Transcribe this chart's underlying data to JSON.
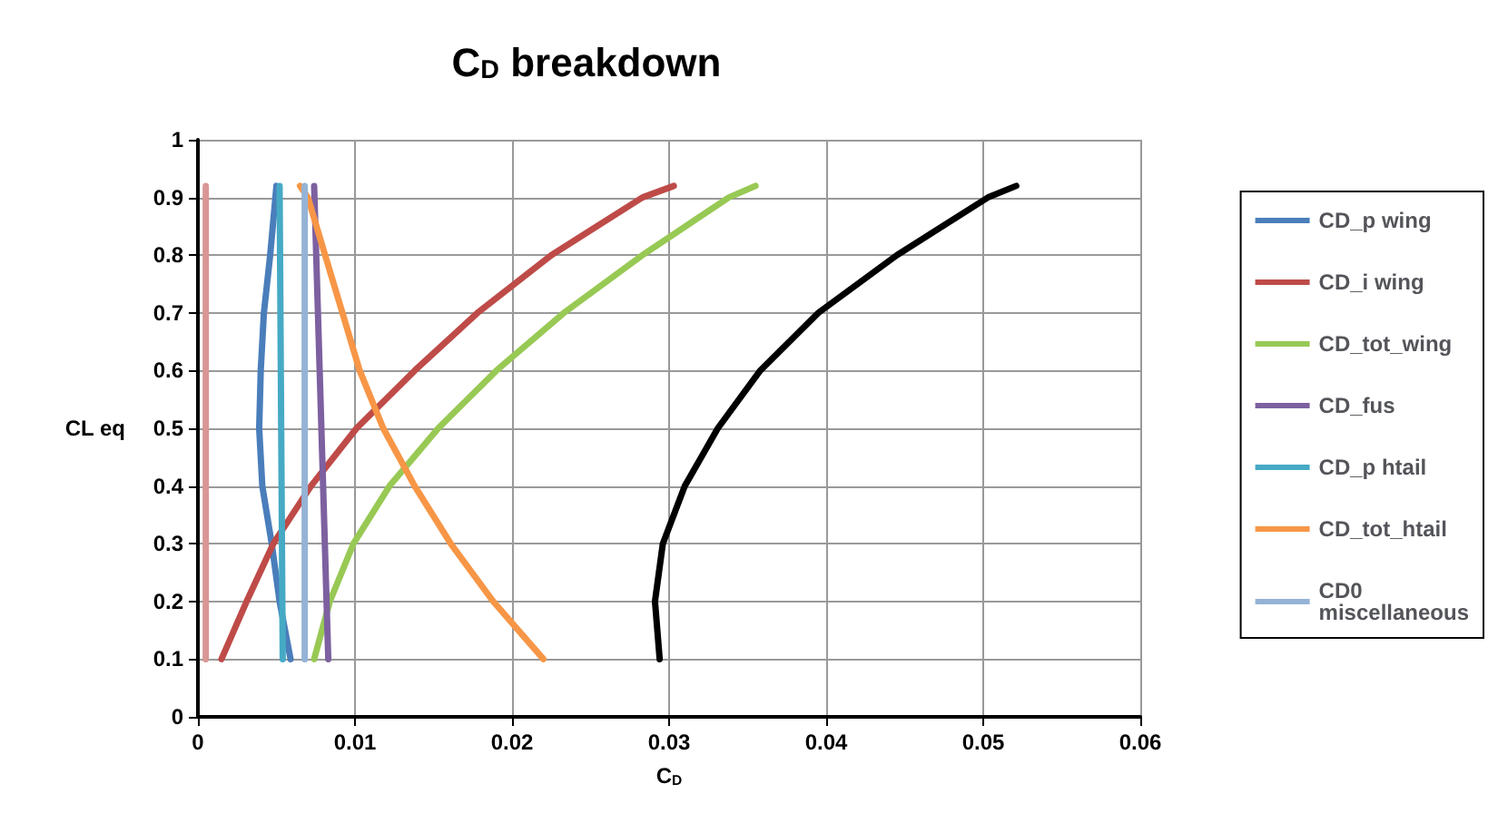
{
  "chart_data": {
    "type": "line",
    "title": "C$_{D}$ breakdown",
    "xlabel": "C$_{D}$",
    "ylabel": "CL eq",
    "xlim": [
      0,
      0.06
    ],
    "xticks": [
      0,
      0.01,
      0.02,
      0.03,
      0.04,
      0.05,
      0.06
    ],
    "ylim": [
      0,
      1
    ],
    "yticks": [
      0,
      0.1,
      0.2,
      0.3,
      0.4,
      0.5,
      0.6,
      0.7,
      0.8,
      0.9,
      1
    ],
    "grid": true,
    "legend": "right",
    "marker": "none",
    "line_style": "solid",
    "series": [
      {
        "name": "CD_p wing",
        "color": "#4a7ebb",
        "x": [
          0.0059,
          0.0052,
          0.0047,
          0.0041,
          0.0039,
          0.004,
          0.0042,
          0.0046,
          0.005
        ],
        "values": [
          0.1,
          0.2,
          0.3,
          0.4,
          0.5,
          0.6,
          0.7,
          0.8,
          0.92
        ]
      },
      {
        "name": "CD_i wing",
        "color": "#be4b48",
        "x": [
          0.0015,
          0.0031,
          0.0048,
          0.0072,
          0.0101,
          0.0138,
          0.0178,
          0.0225,
          0.0283,
          0.0303
        ],
        "values": [
          0.1,
          0.2,
          0.3,
          0.4,
          0.5,
          0.6,
          0.7,
          0.8,
          0.9,
          0.92
        ]
      },
      {
        "name": "CD_tot_wing",
        "color": "#98c954",
        "x": [
          0.0074,
          0.0084,
          0.0099,
          0.0122,
          0.0153,
          0.019,
          0.0233,
          0.0283,
          0.0338,
          0.0355
        ],
        "values": [
          0.1,
          0.2,
          0.3,
          0.4,
          0.5,
          0.6,
          0.7,
          0.8,
          0.9,
          0.92
        ]
      },
      {
        "name": "CD_fus",
        "color": "#7d60a0",
        "x": [
          0.0083,
          0.0074
        ],
        "values": [
          0.1,
          0.92
        ]
      },
      {
        "name": "CD_p htail",
        "color": "#46aac5",
        "x": [
          0.0054,
          0.0052
        ],
        "values": [
          0.1,
          0.92
        ]
      },
      {
        "name": "CD_tot_htail",
        "color": "#f79646",
        "x": [
          0.022,
          0.0188,
          0.0161,
          0.0138,
          0.0118,
          0.0103,
          0.0092,
          0.0081,
          0.007,
          0.0065
        ],
        "values": [
          0.1,
          0.2,
          0.3,
          0.4,
          0.5,
          0.6,
          0.7,
          0.8,
          0.9,
          0.92
        ]
      },
      {
        "name": "CD0 miscellaneous",
        "color": "#94b3d6",
        "x": [
          0.0068,
          0.0068
        ],
        "values": [
          0.1,
          0.92
        ]
      },
      {
        "color": "#d99694",
        "x": [
          0.0005,
          0.0005
        ],
        "values": [
          0.1,
          0.92
        ]
      },
      {
        "color": "#000000",
        "x": [
          0.0294,
          0.0291,
          0.0296,
          0.031,
          0.0331,
          0.0358,
          0.0395,
          0.0445,
          0.0503,
          0.0521
        ],
        "values": [
          0.1,
          0.2,
          0.3,
          0.4,
          0.5,
          0.6,
          0.7,
          0.8,
          0.9,
          0.92
        ]
      }
    ]
  }
}
